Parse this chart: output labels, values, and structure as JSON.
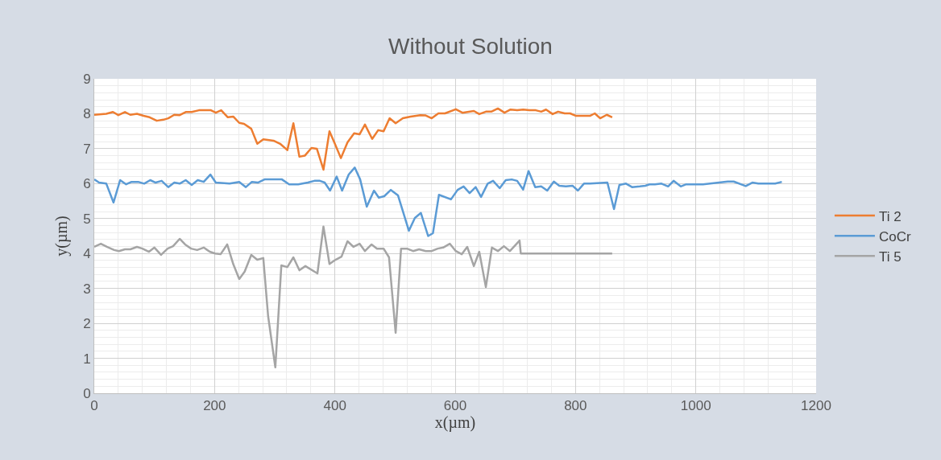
{
  "chart_data": {
    "type": "line",
    "title": "Without Solution",
    "xlabel": "x(µm)",
    "ylabel": "y(µm)",
    "xlim": [
      0,
      1200
    ],
    "xticks": [
      0,
      200,
      400,
      600,
      800,
      1000,
      1200
    ],
    "ylim": [
      0,
      9
    ],
    "yticks": [
      0,
      1,
      2,
      3,
      4,
      5,
      6,
      7,
      8,
      9
    ],
    "grid": true,
    "legend": "right",
    "marker": "none",
    "line_style": "solid",
    "series": [
      {
        "name": "Ti 2",
        "color": "#ed7d31",
        "x": [
          0,
          20,
          31,
          40,
          51,
          60,
          71,
          82,
          92,
          104,
          115,
          123,
          133,
          142,
          152,
          162,
          174,
          185,
          194,
          202,
          211,
          222,
          231,
          241,
          249,
          261,
          271,
          281,
          298,
          309,
          321,
          331,
          341,
          350,
          361,
          370,
          381,
          391,
          400,
          410,
          421,
          432,
          441,
          450,
          462,
          472,
          481,
          491,
          501,
          513,
          526,
          542,
          551,
          561,
          572,
          583,
          601,
          612,
          631,
          640,
          651,
          660,
          671,
          682,
          692,
          703,
          713,
          723,
          734,
          743,
          751,
          762,
          771,
          782,
          791,
          801,
          814,
          824,
          832,
          841,
          852,
          861
        ],
        "values": [
          7.97,
          8.0,
          8.05,
          7.96,
          8.05,
          7.97,
          8.0,
          7.94,
          7.9,
          7.8,
          7.83,
          7.87,
          7.97,
          7.96,
          8.05,
          8.05,
          8.1,
          8.1,
          8.1,
          8.03,
          8.1,
          7.9,
          7.92,
          7.74,
          7.71,
          7.57,
          7.14,
          7.27,
          7.23,
          7.14,
          6.96,
          7.73,
          6.77,
          6.8,
          7.02,
          7.0,
          6.4,
          7.5,
          7.14,
          6.73,
          7.18,
          7.44,
          7.41,
          7.69,
          7.28,
          7.53,
          7.5,
          7.87,
          7.73,
          7.87,
          7.92,
          7.96,
          7.95,
          7.87,
          8.01,
          8.01,
          8.13,
          8.03,
          8.08,
          7.99,
          8.06,
          8.06,
          8.15,
          8.03,
          8.12,
          8.1,
          8.12,
          8.1,
          8.1,
          8.06,
          8.12,
          7.99,
          8.06,
          8.01,
          8.01,
          7.94,
          7.94,
          7.94,
          8.01,
          7.87,
          7.97,
          7.9
        ]
      },
      {
        "name": "CoCr",
        "color": "#5b9bd5",
        "x": [
          0,
          8,
          20,
          32,
          43,
          53,
          62,
          73,
          83,
          93,
          102,
          112,
          123,
          133,
          142,
          152,
          162,
          172,
          182,
          193,
          202,
          225,
          241,
          252,
          262,
          272,
          283,
          303,
          312,
          324,
          339,
          355,
          366,
          375,
          383,
          392,
          403,
          412,
          423,
          433,
          442,
          453,
          465,
          473,
          482,
          493,
          505,
          523,
          533,
          543,
          555,
          563,
          573,
          593,
          604,
          614,
          624,
          634,
          643,
          654,
          663,
          674,
          684,
          694,
          703,
          713,
          722,
          733,
          743,
          753,
          764,
          773,
          784,
          795,
          804,
          814,
          824,
          853,
          864,
          873,
          884,
          894,
          907,
          916,
          923,
          932,
          943,
          954,
          963,
          975,
          984,
          1012,
          1053,
          1063,
          1083,
          1094,
          1104,
          1118,
          1132,
          1143
        ],
        "values": [
          6.12,
          6.03,
          6.0,
          5.46,
          6.1,
          5.98,
          6.05,
          6.05,
          6.0,
          6.1,
          6.03,
          6.08,
          5.9,
          6.03,
          6.0,
          6.1,
          5.96,
          6.1,
          6.05,
          6.26,
          6.03,
          6.0,
          6.05,
          5.9,
          6.05,
          6.03,
          6.12,
          6.12,
          6.12,
          5.98,
          5.98,
          6.03,
          6.08,
          6.08,
          6.03,
          5.8,
          6.2,
          5.8,
          6.26,
          6.46,
          6.12,
          5.34,
          5.8,
          5.6,
          5.64,
          5.82,
          5.66,
          4.65,
          5.02,
          5.16,
          4.5,
          4.58,
          5.68,
          5.55,
          5.82,
          5.92,
          5.73,
          5.9,
          5.62,
          6.0,
          6.08,
          5.87,
          6.1,
          6.12,
          6.08,
          5.83,
          6.36,
          5.9,
          5.92,
          5.8,
          6.06,
          5.94,
          5.92,
          5.94,
          5.8,
          6.0,
          6.0,
          6.03,
          5.27,
          5.96,
          6.0,
          5.9,
          5.92,
          5.94,
          5.98,
          5.98,
          6.0,
          5.92,
          6.08,
          5.92,
          5.98,
          5.98,
          6.06,
          6.06,
          5.93,
          6.03,
          6.0,
          6.0,
          6.0,
          6.05
        ]
      },
      {
        "name": "Ti 5",
        "color": "#a5a5a5",
        "x": [
          0,
          11,
          21,
          33,
          41,
          51,
          60,
          71,
          80,
          91,
          100,
          111,
          122,
          131,
          142,
          151,
          161,
          171,
          182,
          192,
          201,
          210,
          221,
          231,
          241,
          250,
          261,
          271,
          281,
          289,
          301,
          311,
          321,
          331,
          341,
          351,
          371,
          381,
          391,
          401,
          411,
          421,
          431,
          441,
          450,
          461,
          470,
          481,
          490,
          501,
          510,
          520,
          530,
          540,
          551,
          561,
          571,
          580,
          591,
          601,
          611,
          620,
          631,
          640,
          651,
          661,
          671,
          681,
          691,
          700,
          707,
          709,
          861
        ],
        "values": [
          4.19,
          4.28,
          4.19,
          4.1,
          4.07,
          4.12,
          4.12,
          4.19,
          4.14,
          4.05,
          4.17,
          3.96,
          4.14,
          4.21,
          4.42,
          4.26,
          4.14,
          4.1,
          4.17,
          4.05,
          4.0,
          3.98,
          4.26,
          3.7,
          3.27,
          3.48,
          3.96,
          3.82,
          3.87,
          2.21,
          0.74,
          3.66,
          3.61,
          3.89,
          3.52,
          3.64,
          3.43,
          4.77,
          3.7,
          3.82,
          3.91,
          4.35,
          4.19,
          4.28,
          4.07,
          4.26,
          4.14,
          4.14,
          3.89,
          1.73,
          4.14,
          4.14,
          4.07,
          4.12,
          4.07,
          4.07,
          4.14,
          4.17,
          4.28,
          4.07,
          3.98,
          4.19,
          3.64,
          4.05,
          3.04,
          4.17,
          4.07,
          4.21,
          4.07,
          4.24,
          4.37,
          4.0,
          4.0
        ]
      }
    ]
  }
}
